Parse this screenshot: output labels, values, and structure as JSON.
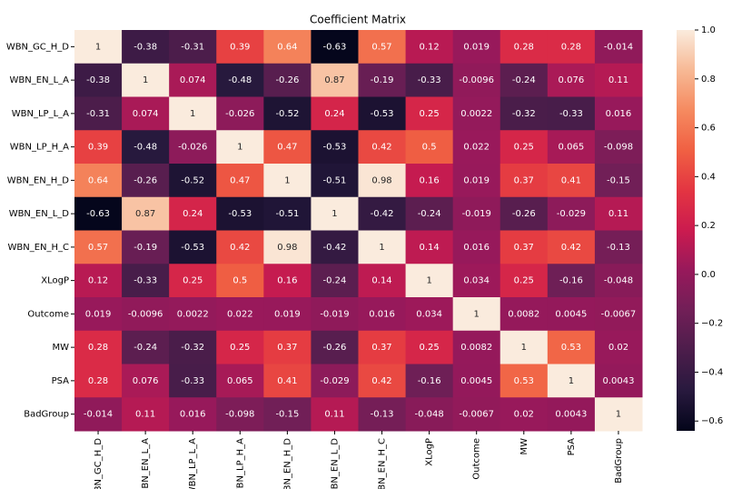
{
  "chart_data": {
    "type": "heatmap",
    "title": "Coefficient Matrix",
    "x_categories": [
      "WBN_GC_H_D",
      "WBN_EN_L_A",
      "WBN_LP_L_A",
      "WBN_LP_H_A",
      "WBN_EN_H_D",
      "WBN_EN_L_D",
      "WBN_EN_H_C",
      "XLogP",
      "Outcome",
      "MW",
      "PSA",
      "BadGroup"
    ],
    "y_categories": [
      "WBN_GC_H_D",
      "WBN_EN_L_A",
      "WBN_LP_L_A",
      "WBN_LP_H_A",
      "WBN_EN_H_D",
      "WBN_EN_L_D",
      "WBN_EN_H_C",
      "XLogP",
      "Outcome",
      "MW",
      "PSA",
      "BadGroup"
    ],
    "values": [
      [
        1,
        -0.38,
        -0.31,
        0.39,
        0.64,
        -0.63,
        0.57,
        0.12,
        0.019,
        0.28,
        0.28,
        -0.014
      ],
      [
        -0.38,
        1,
        0.074,
        -0.48,
        -0.26,
        0.87,
        -0.19,
        -0.33,
        -0.0096,
        -0.24,
        0.076,
        0.11
      ],
      [
        -0.31,
        0.074,
        1,
        -0.026,
        -0.52,
        0.24,
        -0.53,
        0.25,
        0.0022,
        -0.32,
        -0.33,
        0.016
      ],
      [
        0.39,
        -0.48,
        -0.026,
        1,
        0.47,
        -0.53,
        0.42,
        0.5,
        0.022,
        0.25,
        0.065,
        -0.098
      ],
      [
        0.64,
        -0.26,
        -0.52,
        0.47,
        1,
        -0.51,
        0.98,
        0.16,
        0.019,
        0.37,
        0.41,
        -0.15
      ],
      [
        -0.63,
        0.87,
        0.24,
        -0.53,
        -0.51,
        1,
        -0.42,
        -0.24,
        -0.019,
        -0.26,
        -0.029,
        0.11
      ],
      [
        0.57,
        -0.19,
        -0.53,
        0.42,
        0.98,
        -0.42,
        1,
        0.14,
        0.016,
        0.37,
        0.42,
        -0.13
      ],
      [
        0.12,
        -0.33,
        0.25,
        0.5,
        0.16,
        -0.24,
        0.14,
        1,
        0.034,
        0.25,
        -0.16,
        -0.048
      ],
      [
        0.019,
        -0.0096,
        0.0022,
        0.022,
        0.019,
        -0.019,
        0.016,
        0.034,
        1,
        0.0082,
        0.0045,
        -0.0067
      ],
      [
        0.28,
        -0.24,
        -0.32,
        0.25,
        0.37,
        -0.26,
        0.37,
        0.25,
        0.0082,
        1,
        0.53,
        0.02
      ],
      [
        0.28,
        0.076,
        -0.33,
        0.065,
        0.41,
        -0.029,
        0.42,
        -0.16,
        0.0045,
        0.53,
        1,
        0.0043
      ],
      [
        -0.014,
        0.11,
        0.016,
        -0.098,
        -0.15,
        0.11,
        -0.13,
        -0.048,
        -0.0067,
        0.02,
        0.0043,
        1
      ]
    ],
    "colormap": "rocket",
    "clim": [
      -0.64,
      1
    ],
    "cticks": [
      {
        "value": 1,
        "label": "1.0"
      },
      {
        "value": 0.8,
        "label": "0.8"
      },
      {
        "value": 0.6,
        "label": "0.6"
      },
      {
        "value": 0.4,
        "label": "0.4"
      },
      {
        "value": 0.2,
        "label": "0.2"
      },
      {
        "value": 0,
        "label": "0.0"
      },
      {
        "value": -0.2,
        "label": "−0.2"
      },
      {
        "value": -0.4,
        "label": "−0.4"
      },
      {
        "value": -0.6,
        "label": "−0.6"
      }
    ]
  }
}
